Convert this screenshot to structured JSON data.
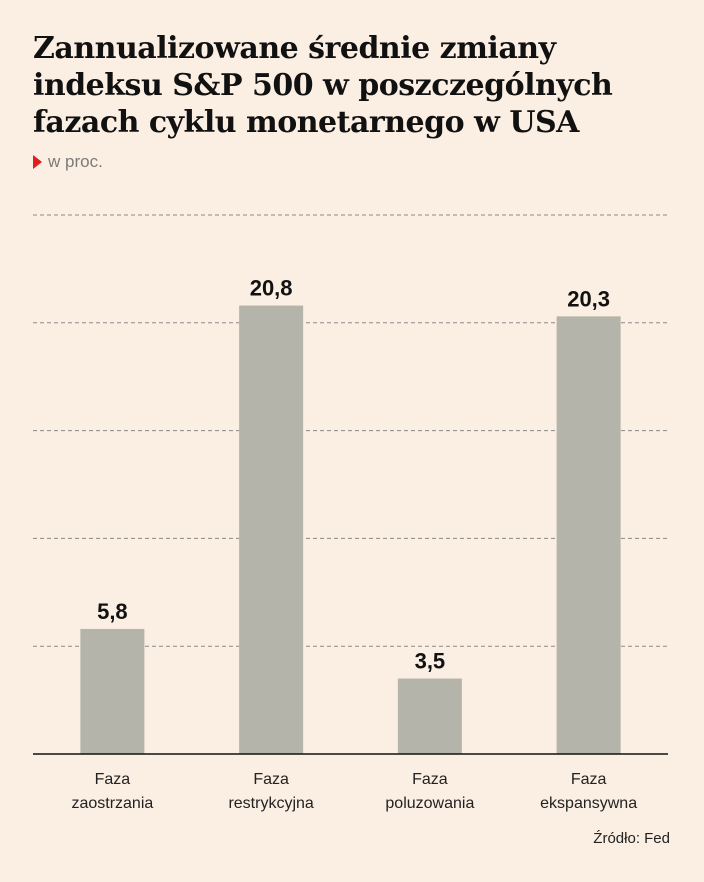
{
  "title": "Zannualizowane średnie zmiany indeksu S&P 500 w poszczególnych fazach cyklu monetarnego w USA",
  "subtitle": "w proc.",
  "source": "Źródło: Fed",
  "colors": {
    "bar": "#b5b4aa",
    "background": "#fbeee3",
    "accent": "#e01e1e",
    "grid": "#8a8a8a"
  },
  "chart_data": {
    "type": "bar",
    "categories": [
      [
        "Faza",
        "zaostrzania"
      ],
      [
        "Faza",
        "restrykcyjna"
      ],
      [
        "Faza",
        "poluzowania"
      ],
      [
        "Faza",
        "ekspansywna"
      ]
    ],
    "values": [
      5.8,
      20.8,
      3.5,
      20.3
    ],
    "value_labels": [
      "5,8",
      "20,8",
      "3,5",
      "20,3"
    ],
    "ylim": [
      0,
      25
    ],
    "gridlines": [
      5,
      10,
      15,
      20,
      25
    ],
    "grid": true,
    "legend": "none"
  }
}
